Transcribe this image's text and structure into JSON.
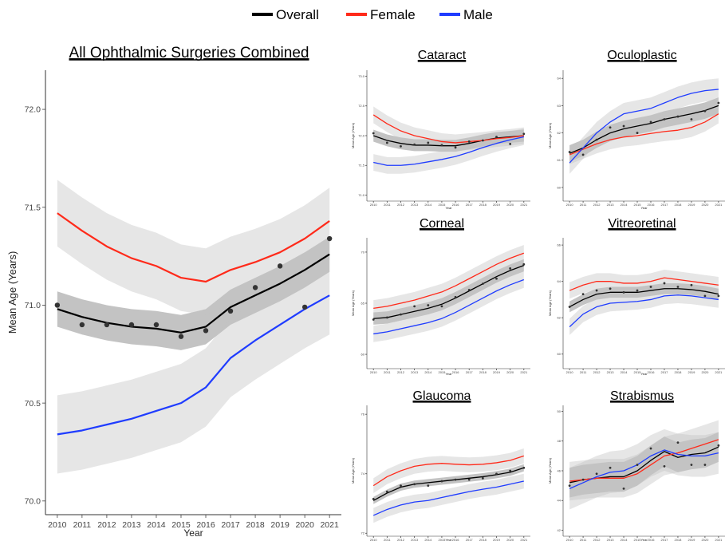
{
  "legend": {
    "items": [
      {
        "label": "Overall",
        "color": "#000000"
      },
      {
        "label": "Female",
        "color": "#ff2a1a"
      },
      {
        "label": "Male",
        "color": "#1f3cff"
      }
    ]
  },
  "chart_data": [
    {
      "type": "line",
      "title": "All Ophthalmic Surgeries Combined",
      "xlabel": "Year",
      "ylabel": "Mean Age (Years)",
      "x": [
        2010,
        2011,
        2012,
        2013,
        2014,
        2015,
        2016,
        2017,
        2018,
        2019,
        2020,
        2021
      ],
      "ylim": [
        69.93,
        72.2
      ],
      "yticks": [
        70.0,
        70.5,
        71.0,
        71.5,
        72.0
      ],
      "yticklabels": [
        "70.0",
        "70.5",
        "71.0",
        "71.5",
        "72.0"
      ],
      "series": [
        {
          "name": "Overall",
          "color": "#000000",
          "values": [
            70.98,
            70.94,
            70.91,
            70.89,
            70.88,
            70.86,
            70.89,
            70.99,
            71.05,
            71.11,
            71.18,
            71.26
          ],
          "band": 0.09,
          "points": [
            71.0,
            70.9,
            70.9,
            70.9,
            70.9,
            70.84,
            70.87,
            70.97,
            71.09,
            71.2,
            70.99,
            71.34
          ]
        },
        {
          "name": "Female",
          "color": "#ff2a1a",
          "values": [
            71.47,
            71.38,
            71.3,
            71.24,
            71.2,
            71.14,
            71.12,
            71.18,
            71.22,
            71.27,
            71.34,
            71.43
          ],
          "band": 0.17
        },
        {
          "name": "Male",
          "color": "#1f3cff",
          "values": [
            70.34,
            70.36,
            70.39,
            70.42,
            70.46,
            70.5,
            70.58,
            70.73,
            70.82,
            70.9,
            70.98,
            71.05
          ],
          "band": 0.2
        }
      ]
    },
    {
      "type": "line",
      "title": "Cataract",
      "xlabel": "Year",
      "ylabel": "Mean Age (Years)",
      "x": [
        2010,
        2011,
        2012,
        2013,
        2014,
        2015,
        2016,
        2017,
        2018,
        2019,
        2020,
        2021
      ],
      "ylim": [
        70.9,
        73.1
      ],
      "yticks": [
        71.0,
        71.5,
        72.0,
        72.5,
        73.0
      ],
      "yticklabels": [
        "71.0",
        "71.5",
        "72.0",
        "72.5",
        "73.0"
      ],
      "series": [
        {
          "name": "Overall",
          "color": "#000000",
          "values": [
            72.0,
            71.92,
            71.87,
            71.84,
            71.84,
            71.83,
            71.83,
            71.87,
            71.92,
            71.96,
            71.98,
            72.0
          ],
          "band": 0.1,
          "points": [
            72.04,
            71.88,
            71.82,
            71.85,
            71.88,
            71.84,
            71.8,
            71.9,
            71.92,
            71.98,
            71.86,
            72.03
          ]
        },
        {
          "name": "Female",
          "color": "#ff2a1a",
          "values": [
            72.35,
            72.2,
            72.08,
            72.0,
            71.95,
            71.9,
            71.88,
            71.9,
            71.92,
            71.95,
            71.97,
            72.0
          ],
          "band": 0.14
        },
        {
          "name": "Male",
          "color": "#1f3cff",
          "values": [
            71.55,
            71.5,
            71.5,
            71.52,
            71.56,
            71.6,
            71.65,
            71.72,
            71.8,
            71.87,
            71.93,
            71.98
          ],
          "band": 0.14
        }
      ]
    },
    {
      "type": "line",
      "title": "Oculoplastic",
      "xlabel": "Year",
      "ylabel": "Mean Age (Years)",
      "x": [
        2010,
        2011,
        2012,
        2013,
        2014,
        2015,
        2016,
        2017,
        2018,
        2019,
        2020,
        2021
      ],
      "ylim": [
        59.5,
        64.3
      ],
      "yticks": [
        60,
        61,
        62,
        63,
        64
      ],
      "yticklabels": [
        "60",
        "61",
        "62",
        "63",
        "64"
      ],
      "series": [
        {
          "name": "Overall",
          "color": "#000000",
          "values": [
            61.25,
            61.45,
            61.75,
            62.0,
            62.15,
            62.25,
            62.35,
            62.5,
            62.6,
            62.7,
            62.82,
            63.0
          ],
          "band": 0.3,
          "points": [
            61.3,
            61.2,
            61.75,
            62.2,
            62.25,
            62.0,
            62.4,
            62.5,
            62.6,
            62.5,
            62.8,
            63.1
          ]
        },
        {
          "name": "Female",
          "color": "#ff2a1a",
          "values": [
            61.2,
            61.4,
            61.6,
            61.75,
            61.85,
            61.9,
            61.98,
            62.05,
            62.1,
            62.2,
            62.4,
            62.7
          ],
          "band": 0.35
        },
        {
          "name": "Male",
          "color": "#1f3cff",
          "values": [
            60.9,
            61.45,
            62.0,
            62.4,
            62.7,
            62.8,
            62.9,
            63.1,
            63.3,
            63.45,
            63.55,
            63.6
          ],
          "band": 0.4
        }
      ]
    },
    {
      "type": "line",
      "title": "Corneal",
      "xlabel": "Year",
      "ylabel": "Mean Age (Years)",
      "x": [
        2010,
        2011,
        2012,
        2013,
        2014,
        2015,
        2016,
        2017,
        2018,
        2019,
        2020,
        2021
      ],
      "ylim": [
        58.6,
        71.4
      ],
      "yticks": [
        60,
        65,
        70
      ],
      "yticklabels": [
        "60",
        "65",
        "70"
      ],
      "series": [
        {
          "name": "Overall",
          "color": "#000000",
          "values": [
            63.5,
            63.6,
            63.9,
            64.2,
            64.5,
            64.9,
            65.5,
            66.2,
            66.9,
            67.6,
            68.2,
            68.7
          ],
          "band": 0.6,
          "points": [
            63.4,
            63.6,
            63.9,
            64.7,
            64.8,
            64.7,
            65.6,
            66.3,
            66.9,
            67.4,
            68.4,
            68.8
          ]
        },
        {
          "name": "Female",
          "color": "#ff2a1a",
          "values": [
            64.5,
            64.7,
            65.0,
            65.3,
            65.7,
            66.1,
            66.7,
            67.4,
            68.1,
            68.8,
            69.4,
            69.9
          ],
          "band": 0.8
        },
        {
          "name": "Male",
          "color": "#1f3cff",
          "values": [
            62.0,
            62.2,
            62.5,
            62.8,
            63.1,
            63.5,
            64.1,
            64.8,
            65.5,
            66.2,
            66.8,
            67.3
          ],
          "band": 0.8
        }
      ]
    },
    {
      "type": "line",
      "title": "Vitreoretinal",
      "xlabel": "Year",
      "ylabel": "Mean Age (Years)",
      "x": [
        2010,
        2011,
        2012,
        2013,
        2014,
        2015,
        2016,
        2017,
        2018,
        2019,
        2020,
        2021
      ],
      "ylim": [
        59.2,
        66.4
      ],
      "yticks": [
        60,
        62,
        64,
        66
      ],
      "yticklabels": [
        "60",
        "62",
        "64",
        "66"
      ],
      "series": [
        {
          "name": "Overall",
          "color": "#000000",
          "values": [
            62.6,
            63.0,
            63.3,
            63.4,
            63.4,
            63.4,
            63.5,
            63.6,
            63.6,
            63.55,
            63.45,
            63.3
          ],
          "band": 0.3,
          "points": [
            62.6,
            63.3,
            63.5,
            63.6,
            63.4,
            63.5,
            63.7,
            63.9,
            63.7,
            63.8,
            63.2,
            63.2
          ]
        },
        {
          "name": "Female",
          "color": "#ff2a1a",
          "values": [
            63.5,
            63.8,
            64.0,
            64.0,
            63.9,
            63.9,
            64.0,
            64.2,
            64.1,
            64.0,
            63.9,
            63.8
          ],
          "band": 0.45
        },
        {
          "name": "Male",
          "color": "#1f3cff",
          "values": [
            61.5,
            62.2,
            62.6,
            62.8,
            62.85,
            62.9,
            63.0,
            63.2,
            63.25,
            63.2,
            63.1,
            63.0
          ],
          "band": 0.45
        }
      ]
    },
    {
      "type": "line",
      "title": "Glaucoma",
      "xlabel": "Year",
      "ylabel": "Mean Age (Years)",
      "x": [
        2010,
        2011,
        2012,
        2013,
        2014,
        2015,
        2016,
        2017,
        2018,
        2019,
        2020,
        2021
      ],
      "ylim": [
        71.9,
        76.3
      ],
      "yticks": [
        72,
        74,
        76
      ],
      "yticklabels": [
        "72",
        "74",
        "76"
      ],
      "series": [
        {
          "name": "Overall",
          "color": "#000000",
          "values": [
            73.1,
            73.35,
            73.55,
            73.65,
            73.7,
            73.75,
            73.8,
            73.85,
            73.9,
            73.97,
            74.05,
            74.2
          ],
          "band": 0.12,
          "points": [
            73.15,
            73.4,
            73.6,
            73.65,
            73.6,
            73.75,
            73.8,
            73.8,
            73.85,
            74.0,
            74.1,
            74.2
          ]
        },
        {
          "name": "Female",
          "color": "#ff2a1a",
          "values": [
            73.6,
            73.9,
            74.1,
            74.25,
            74.32,
            74.35,
            74.32,
            74.3,
            74.32,
            74.37,
            74.45,
            74.6
          ],
          "band": 0.25
        },
        {
          "name": "Male",
          "color": "#1f3cff",
          "values": [
            72.6,
            72.8,
            72.95,
            73.05,
            73.1,
            73.2,
            73.3,
            73.4,
            73.48,
            73.55,
            73.65,
            73.75
          ],
          "band": 0.25
        }
      ]
    },
    {
      "type": "line",
      "title": "Strabismus",
      "xlabel": "Year",
      "ylabel": "Mean Age (Years)",
      "x": [
        2010,
        2011,
        2012,
        2013,
        2014,
        2015,
        2016,
        2017,
        2018,
        2019,
        2020,
        2021
      ],
      "ylim": [
        41.6,
        50.4
      ],
      "yticks": [
        42,
        44,
        46,
        48,
        50
      ],
      "yticklabels": [
        "42",
        "44",
        "46",
        "48",
        "50"
      ],
      "series": [
        {
          "name": "Overall",
          "color": "#000000",
          "values": [
            45.2,
            45.4,
            45.5,
            45.6,
            45.6,
            46.0,
            46.7,
            47.3,
            46.9,
            47.1,
            47.2,
            47.6
          ],
          "band": 1.0,
          "points": [
            45.0,
            45.4,
            45.8,
            46.2,
            44.8,
            46.4,
            47.5,
            46.3,
            47.9,
            46.4,
            46.4,
            47.7
          ]
        },
        {
          "name": "Female",
          "color": "#ff2a1a",
          "values": [
            45.3,
            45.4,
            45.5,
            45.5,
            45.5,
            45.8,
            46.4,
            47.0,
            47.2,
            47.5,
            47.8,
            48.1
          ],
          "band": 1.3
        },
        {
          "name": "Male",
          "color": "#1f3cff",
          "values": [
            44.8,
            45.2,
            45.6,
            45.9,
            46.0,
            46.4,
            47.0,
            47.4,
            47.1,
            47.0,
            47.0,
            47.2
          ],
          "band": 1.4
        }
      ]
    }
  ]
}
